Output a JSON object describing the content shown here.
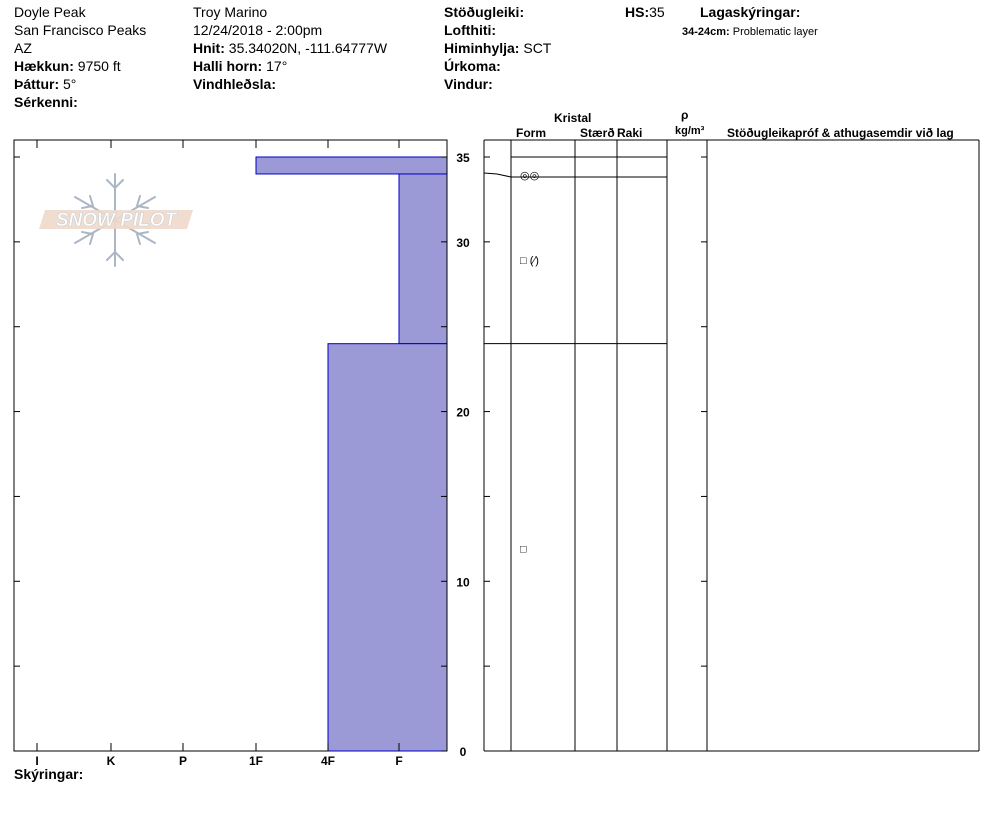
{
  "header": {
    "col1": {
      "location": "Doyle Peak",
      "range": "San Francisco Peaks",
      "state": "AZ",
      "elevation_label": "Hækkun:",
      "elevation_value": "9750 ft",
      "aspect_label": "Þáttur:",
      "aspect_value": "5°",
      "features_label": "Sérkenni:"
    },
    "col2": {
      "observer": "Troy Marino",
      "datetime": "12/24/2018 - 2:00pm",
      "coords_label": "Hnit:",
      "coords_value": "35.34020N, -111.64777W",
      "slope_label": "Halli horn:",
      "slope_value": "17°",
      "wind_loading_label": "Vindhleðsla:"
    },
    "col3": {
      "stability_label": "Stöðugleiki:",
      "air_temp_label": "Lofthiti:",
      "sky_label": "Himinhylja:",
      "sky_value": "SCT",
      "precip_label": "Úrkoma:",
      "wind_label": "Vindur:"
    },
    "hs_label": "HS:",
    "hs_value": "35",
    "layer_notes_label": "Lagaskýringar:",
    "layer_notes": [
      {
        "range": "34-24cm:",
        "note": "Problematic layer"
      }
    ]
  },
  "table_headers": {
    "kristal": "Kristal",
    "form": "Form",
    "size": "Stærð",
    "moisture": "Raki",
    "rho": "ρ",
    "density_unit": "kg/m³",
    "tests": "Stöðugleikapróf & athugasemdir við lag"
  },
  "footer": {
    "notes_label": "Skýringar:"
  },
  "logo": {
    "text": "SNOW PILOT"
  },
  "colors": {
    "hardness_fill": "#9b9ad6",
    "hardness_edge": "#0000c8"
  },
  "chart_data": {
    "type": "bar",
    "y_axis": {
      "range": [
        0,
        35
      ],
      "ticks": [
        0,
        10,
        20,
        30,
        35
      ]
    },
    "x_axis": {
      "categories": [
        "I",
        "K",
        "P",
        "1F",
        "4F",
        "F"
      ]
    },
    "layers": [
      {
        "top": 35,
        "bottom": 34,
        "hardness": "1F"
      },
      {
        "top": 34,
        "bottom": 24,
        "hardness": "F"
      },
      {
        "top": 24,
        "bottom": 0,
        "hardness": "4F"
      }
    ],
    "grain_symbols": [
      {
        "depth": 34,
        "symbol": "◎◎"
      },
      {
        "depth": 29,
        "symbol": "□ (⁄)"
      },
      {
        "depth": 12,
        "symbol": "□"
      }
    ]
  }
}
